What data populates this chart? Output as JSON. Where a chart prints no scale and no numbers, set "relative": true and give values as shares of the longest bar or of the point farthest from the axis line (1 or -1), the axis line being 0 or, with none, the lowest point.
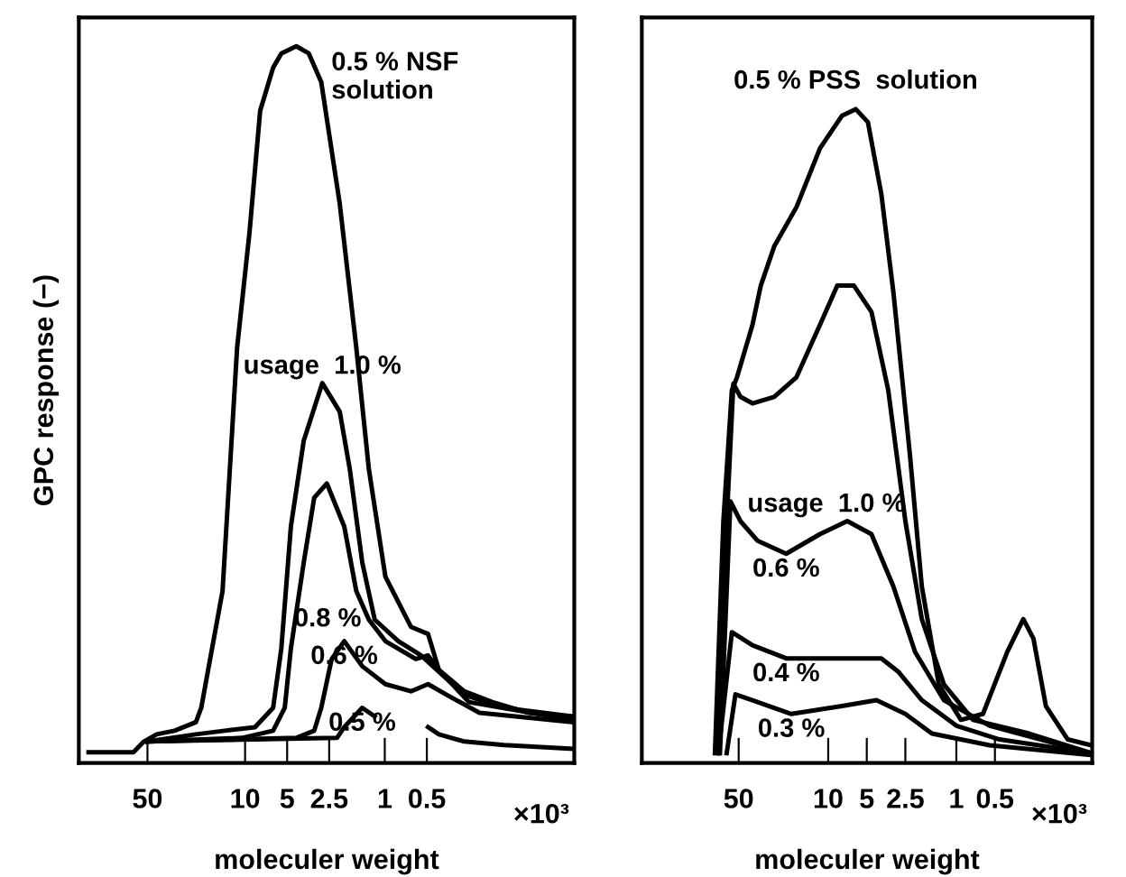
{
  "chart_data": [
    {
      "type": "line",
      "relative": true,
      "xlabel": "moleculer weight",
      "ylabel": "GPC response (−)",
      "log": "x",
      "xlim": [
        155,
        0.044
      ],
      "xticks": [
        50,
        10,
        5,
        2.5,
        1,
        0.5
      ],
      "annotations": [
        "×10³"
      ],
      "tick_labels": "x",
      "grid": false,
      "legend": false,
      "marker": "none",
      "line_style": "solid",
      "series": [
        {
          "name": "0.5 % NSF\nsolution",
          "color": "#000000",
          "x": [
            132,
            63,
            53,
            43,
            32,
            22.5,
            20.6,
            14.5,
            11.4,
            9.3,
            7.8,
            6.3,
            5.5,
            4.3,
            3.5,
            2.85,
            2.1,
            1.6,
            1.3,
            0.99,
            0.65,
            0.49,
            0.41,
            0.27,
            0.17,
            0.093,
            0.046
          ],
          "values": [
            0.015,
            0.015,
            0.03,
            0.04,
            0.045,
            0.057,
            0.077,
            0.24,
            0.58,
            0.74,
            0.91,
            0.97,
            0.99,
            1.0,
            0.99,
            0.95,
            0.78,
            0.58,
            0.41,
            0.26,
            0.19,
            0.18,
            0.13,
            0.1,
            0.085,
            0.07,
            0.065
          ]
        },
        {
          "name": "usage  1.0 %",
          "color": "#000000",
          "x": [
            50,
            22.5,
            14,
            8.5,
            6.3,
            5.5,
            4.7,
            3.8,
            2.8,
            2.1,
            1.78,
            1.45,
            1.18,
            0.8,
            0.55,
            0.27,
            0.14,
            0.046
          ],
          "values": [
            0.03,
            0.04,
            0.045,
            0.05,
            0.077,
            0.16,
            0.33,
            0.45,
            0.53,
            0.49,
            0.41,
            0.28,
            0.2,
            0.17,
            0.15,
            0.095,
            0.077,
            0.065
          ]
        },
        {
          "name": "0.8 %",
          "color": "#000000",
          "x": [
            50,
            10.5,
            6.3,
            5.2,
            4.7,
            3.8,
            3.2,
            2.6,
            1.95,
            1.6,
            1.3,
            0.99,
            0.6,
            0.49,
            0.41,
            0.25,
            0.046
          ],
          "values": [
            0.03,
            0.035,
            0.045,
            0.077,
            0.16,
            0.28,
            0.37,
            0.39,
            0.33,
            0.24,
            0.2,
            0.17,
            0.145,
            0.15,
            0.13,
            0.085,
            0.06
          ]
        },
        {
          "name": "0.6 %",
          "color": "#000000",
          "x": [
            50,
            4.3,
            3.2,
            2.85,
            2.4,
            1.95,
            1.45,
            0.99,
            0.65,
            0.49,
            0.36,
            0.21,
            0.046
          ],
          "values": [
            0.03,
            0.035,
            0.045,
            0.077,
            0.145,
            0.17,
            0.135,
            0.11,
            0.1,
            0.11,
            0.095,
            0.07,
            0.057
          ]
        },
        {
          "name": "0.5 %",
          "color": "#000000",
          "x": [
            50,
            2.2,
            1.95,
            1.45,
            1.18,
            0.8,
            0.49,
            0.41,
            0.27,
            0.14,
            0.046
          ],
          "values": [
            0.03,
            0.035,
            0.05,
            0.077,
            0.065,
            null,
            0.05,
            0.04,
            0.03,
            0.025,
            0.02
          ]
        }
      ]
    },
    {
      "type": "line",
      "relative": true,
      "xlabel": "moleculer weight",
      "log": "x",
      "xlim": [
        285,
        0.087
      ],
      "xticks": [
        50,
        10,
        5,
        2.5,
        1,
        0.5
      ],
      "annotations": [
        "×10³"
      ],
      "tick_labels": "x",
      "grid": false,
      "legend": false,
      "marker": "none",
      "line_style": "solid",
      "series": [
        {
          "name": "0.5 % PSS  solution",
          "color": "#000000",
          "x": [
            76.6,
            65.8,
            56.5,
            51.5,
            39,
            33.6,
            26.4,
            17.7,
            11.6,
            7.8,
            6.1,
            4.9,
            3.85,
            3.1,
            2.3,
            1.86,
            1.37,
            0.92,
            0.62,
            0.4,
            0.3,
            0.25,
            0.2,
            0.135,
            0.088
          ],
          "values": [
            0.015,
            0.37,
            0.57,
            0.59,
            0.67,
            0.73,
            0.79,
            0.85,
            0.94,
            0.99,
            1.0,
            0.98,
            0.87,
            0.72,
            0.47,
            0.27,
            0.12,
            0.066,
            0.075,
            0.17,
            0.22,
            0.19,
            0.087,
            0.036,
            0.027
          ]
        },
        {
          "name": "usage  1.0 %",
          "color": "#000000",
          "x": [
            72,
            62,
            55,
            48.5,
            39,
            26.4,
            17.7,
            11.6,
            8.5,
            6.3,
            4.6,
            3.4,
            2.5,
            1.86,
            1.25,
            0.74,
            0.27,
            0.088
          ],
          "values": [
            0.015,
            0.37,
            0.58,
            0.56,
            0.55,
            0.56,
            0.59,
            0.67,
            0.73,
            0.73,
            0.69,
            0.57,
            0.37,
            0.22,
            0.12,
            0.066,
            0.045,
            0.015
          ]
        },
        {
          "name": "0.6 %",
          "color": "#000000",
          "x": [
            70,
            58,
            48.5,
            35.7,
            21.3,
            11.6,
            7.1,
            4.6,
            3.1,
            2.1,
            1.25,
            0.55,
            0.088
          ],
          "values": [
            0.015,
            0.4,
            0.37,
            0.34,
            0.32,
            0.35,
            0.37,
            0.35,
            0.27,
            0.17,
            0.096,
            0.057,
            0.015
          ]
        },
        {
          "name": "0.4 %",
          "color": "#000000",
          "x": [
            72,
            56.5,
            39,
            21.3,
            9.6,
            3.85,
            2.85,
            1.86,
            1.0,
            0.46,
            0.088
          ],
          "values": [
            0.015,
            0.2,
            0.18,
            0.16,
            0.16,
            0.16,
            0.14,
            0.096,
            0.057,
            0.036,
            0.015
          ]
        },
        {
          "name": "0.3 %",
          "color": "#000000",
          "x": [
            62,
            53,
            39,
            19.4,
            7.8,
            4.2,
            2.5,
            1.55,
            0.55,
            0.088
          ],
          "values": [
            0.015,
            0.105,
            0.096,
            0.075,
            0.087,
            0.096,
            0.075,
            0.045,
            0.027,
            0.012
          ]
        }
      ]
    }
  ]
}
